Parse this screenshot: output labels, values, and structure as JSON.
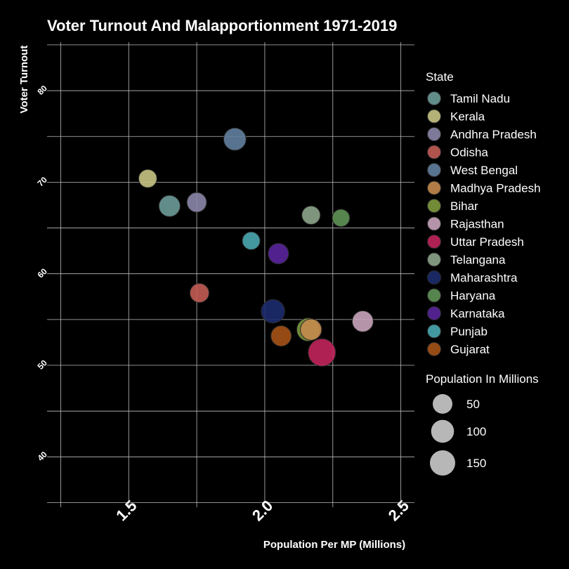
{
  "chart_data": {
    "type": "scatter",
    "title": "Voter Turnout And Malapportionment 1971-2019",
    "xlabel": "Population Per MP (Millions)",
    "ylabel": "Voter Turnout",
    "xlim": [
      1.2,
      2.55
    ],
    "ylim": [
      34.5,
      85.3
    ],
    "x_ticks": [
      1.5,
      2.0,
      2.5
    ],
    "x_tick_labels": [
      "1.5",
      "2.0",
      "2.5"
    ],
    "y_ticks": [
      40,
      50,
      60,
      70,
      80
    ],
    "y_tick_labels": [
      "40",
      "50",
      "60",
      "70",
      "80"
    ],
    "grid": true,
    "legend_placement": "right",
    "color_legend_title": "State",
    "size_legend_title": "Population In Millions",
    "size_legend_values": [
      50,
      100,
      150
    ],
    "size_legend_labels": [
      "50",
      "100",
      "150"
    ],
    "size_legend_color": "#b7b7b7",
    "series": [
      {
        "name": "Tamil Nadu",
        "color": "#6b9b98",
        "x": 1.65,
        "y": 67.4,
        "size": 72
      },
      {
        "name": "Kerala",
        "color": "#c7c483",
        "x": 1.57,
        "y": 70.4,
        "size": 33
      },
      {
        "name": "Andhra Pradesh",
        "color": "#8b86a8",
        "x": 1.75,
        "y": 67.8,
        "size": 50
      },
      {
        "name": "Odisha",
        "color": "#c45c55",
        "x": 1.76,
        "y": 57.9,
        "size": 42
      },
      {
        "name": "West Bengal",
        "color": "#62809e",
        "x": 1.89,
        "y": 74.7,
        "size": 91
      },
      {
        "name": "Madhya Pradesh",
        "color": "#c48a4c",
        "x": 2.17,
        "y": 53.9,
        "size": 73
      },
      {
        "name": "Bihar",
        "color": "#7d9a3c",
        "x": 2.16,
        "y": 53.9,
        "size": 104
      },
      {
        "name": "Rajasthan",
        "color": "#c9a4bb",
        "x": 2.36,
        "y": 54.8,
        "size": 69
      },
      {
        "name": "Uttar Pradesh",
        "color": "#c2245c",
        "x": 2.21,
        "y": 51.4,
        "size": 200
      },
      {
        "name": "Telangana",
        "color": "#8ea58b",
        "x": 2.17,
        "y": 66.4,
        "size": 35
      },
      {
        "name": "Maharashtra",
        "color": "#1c2b6e",
        "x": 2.03,
        "y": 55.9,
        "size": 112
      },
      {
        "name": "Haryana",
        "color": "#5f9455",
        "x": 2.28,
        "y": 66.1,
        "size": 25
      },
      {
        "name": "Karnataka",
        "color": "#5a259c",
        "x": 2.05,
        "y": 62.2,
        "size": 61
      },
      {
        "name": "Punjab",
        "color": "#4aa9b0",
        "x": 1.95,
        "y": 63.6,
        "size": 28
      },
      {
        "name": "Gujarat",
        "color": "#a65317",
        "x": 2.06,
        "y": 53.2,
        "size": 60
      }
    ]
  }
}
